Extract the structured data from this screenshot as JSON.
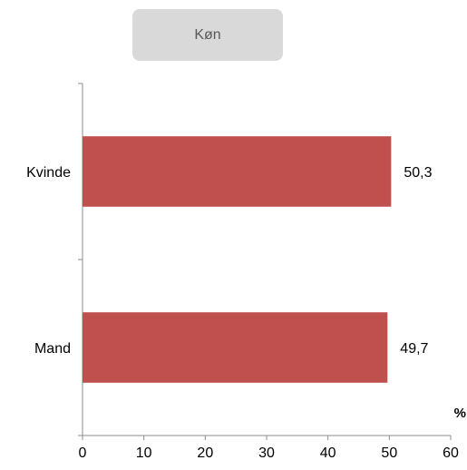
{
  "chart_data": {
    "type": "bar",
    "orientation": "horizontal",
    "title": "Køn",
    "categories": [
      "Kvinde",
      "Mand"
    ],
    "values": [
      50.3,
      49.7
    ],
    "data_labels": [
      "50,3",
      "49,7"
    ],
    "xlim": [
      0,
      60
    ],
    "x_ticks": [
      0,
      10,
      20,
      30,
      40,
      50,
      60
    ],
    "unit_label": "%",
    "grid": false,
    "legend": "none",
    "bar_color": "#c0504d"
  }
}
